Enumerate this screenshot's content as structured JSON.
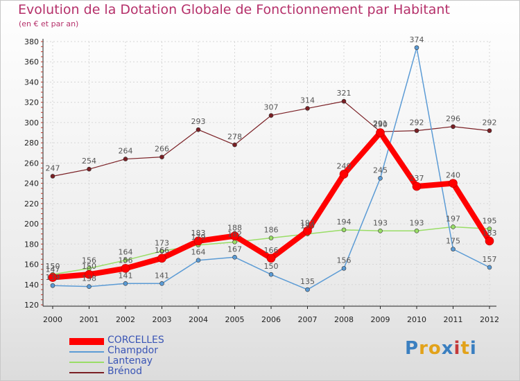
{
  "title": "Evolution de la Dotation Globale de Fonctionnement par Habitant",
  "subtitle": "(en € et par an)",
  "logo": "Proxiti",
  "colors": {
    "title": "#b5306a",
    "legend_text": "#3a55b5"
  },
  "chart_data": {
    "type": "line",
    "title": "Evolution de la Dotation Globale de Fonctionnement par Habitant",
    "subtitle": "(en € et par an)",
    "xlabel": "",
    "ylabel": "",
    "x": [
      "2000",
      "2001",
      "2002",
      "2003",
      "2004",
      "2005",
      "2006",
      "2007",
      "2008",
      "2009",
      "2010",
      "2011",
      "2012"
    ],
    "ylim": [
      120,
      380
    ],
    "yticks": [
      "120",
      "140",
      "160",
      "180",
      "200",
      "220",
      "240",
      "260",
      "280",
      "300",
      "320",
      "340",
      "360",
      "380"
    ],
    "grid": true,
    "legend": "bottom-left",
    "series": [
      {
        "name": "CORCELLES",
        "color": "#ff0000",
        "values": [
          147,
          150,
          156,
          166,
          183,
          188,
          166,
          193,
          249,
          290,
          237,
          240,
          183
        ],
        "labels": [
          "147",
          "150",
          "156",
          "166",
          "183",
          "188",
          "166",
          "193",
          "249",
          "290",
          "237",
          "240",
          "183"
        ]
      },
      {
        "name": "Champdor",
        "color": "#5b9bd5",
        "values": [
          139,
          138,
          141,
          141,
          164,
          167,
          150,
          135,
          156,
          245,
          374,
          175,
          157
        ],
        "labels": [
          "139",
          "138",
          "141",
          "141",
          "164",
          "167",
          "150",
          "135",
          "156",
          "245",
          "374",
          "175",
          "157"
        ]
      },
      {
        "name": "Lantenay",
        "color": "#99dd66",
        "values": [
          150,
          156,
          164,
          173,
          179,
          182,
          186,
          190,
          194,
          193,
          193,
          197,
          195
        ],
        "labels": [
          "150",
          "156",
          "164",
          "173",
          "179",
          "182",
          "186",
          "190",
          "194",
          "193",
          "193",
          "197",
          "195"
        ]
      },
      {
        "name": "Brénod",
        "color": "#7a1f24",
        "values": [
          247,
          254,
          264,
          266,
          293,
          278,
          307,
          314,
          321,
          291,
          292,
          296,
          292
        ],
        "labels": [
          "247",
          "254",
          "264",
          "266",
          "293",
          "278",
          "307",
          "314",
          "321",
          "291",
          "292",
          "296",
          "292"
        ]
      }
    ]
  }
}
